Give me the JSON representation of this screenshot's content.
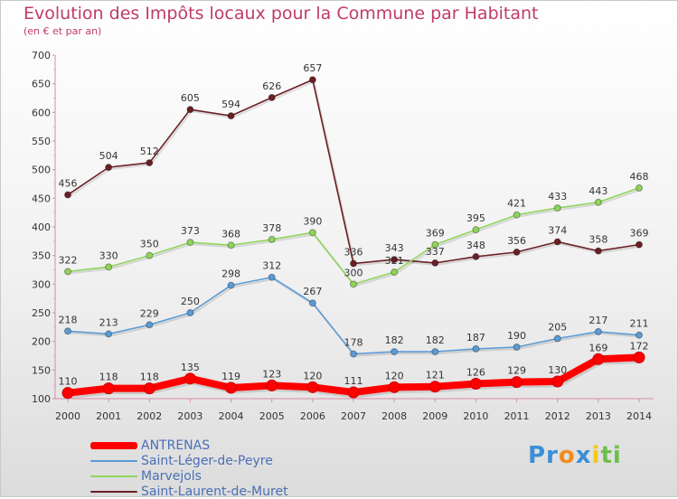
{
  "chart_data": {
    "type": "line",
    "title": "Evolution des Impôts locaux pour la Commune par Habitant",
    "subtitle": "(en € et par an)",
    "x": [
      "2000",
      "2001",
      "2002",
      "2003",
      "2004",
      "2005",
      "2006",
      "2007",
      "2008",
      "2009",
      "2010",
      "2011",
      "2012",
      "2013",
      "2014"
    ],
    "ylim": [
      100,
      700
    ],
    "yticks": [
      100,
      150,
      200,
      250,
      300,
      350,
      400,
      450,
      500,
      550,
      600,
      650,
      700
    ],
    "grid": false,
    "legend_position": "bottom-left",
    "series": [
      {
        "name": "ANTRENAS",
        "color": "#ff0000",
        "values": [
          110,
          118,
          118,
          135,
          119,
          123,
          120,
          111,
          120,
          121,
          126,
          129,
          130,
          169,
          172
        ]
      },
      {
        "name": "Saint-Léger-de-Peyre",
        "color": "#5b9bd5",
        "values": [
          218,
          213,
          229,
          250,
          298,
          312,
          267,
          178,
          182,
          182,
          187,
          190,
          205,
          217,
          211
        ]
      },
      {
        "name": "Marvejols",
        "color": "#8fd45a",
        "values": [
          322,
          330,
          350,
          373,
          368,
          378,
          390,
          300,
          321,
          369,
          395,
          421,
          433,
          443,
          468
        ]
      },
      {
        "name": "Saint-Laurent-de-Muret",
        "color": "#6b1f24",
        "values": [
          456,
          504,
          512,
          605,
          594,
          626,
          657,
          336,
          343,
          337,
          348,
          356,
          374,
          358,
          369
        ]
      }
    ]
  },
  "logo": {
    "parts": [
      "Pr",
      "o",
      "x",
      "i",
      "ti"
    ],
    "colors": [
      "#3a8fd6",
      "#f28c1b",
      "#3a8fd6",
      "#f2c81b",
      "#6cc04a"
    ]
  }
}
